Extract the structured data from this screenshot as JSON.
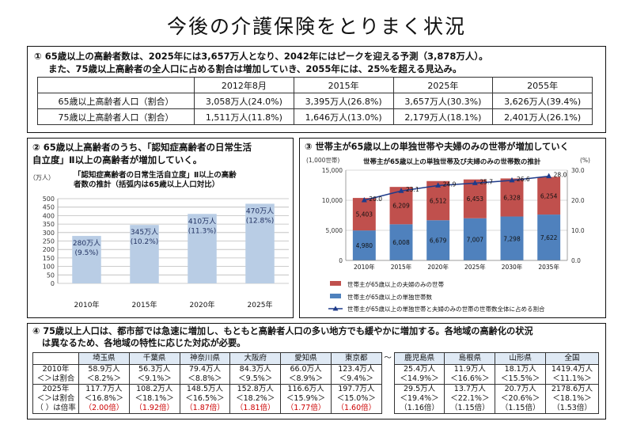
{
  "title": "今後の介護保険をとりまく状況",
  "sec1": {
    "line1": "① 65歳以上の高齢者数は、2025年には3,657万人となり、2042年にはピークを迎える予測（3,878万人）。",
    "line2": "また、75歳以上高齢者の全人口に占める割合は増加していき、2055年には、25%を超える見込み。",
    "headers": [
      "2012年8月",
      "2015年",
      "2025年",
      "2055年"
    ],
    "rows": [
      {
        "label": "65歳以上高齢者人口（割合）",
        "cells": [
          "3,058万人(24.0%)",
          "3,395万人(26.8%)",
          "3,657万人(30.3%)",
          "3,626万人(39.4%)"
        ]
      },
      {
        "label": "75歳以上高齢者人口（割合）",
        "cells": [
          "1,511万人(11.8%)",
          "1,646万人(13.0%)",
          "2,179万人(18.1%)",
          "2,401万人(26.1%)"
        ]
      }
    ]
  },
  "sec2": {
    "lead_line1": "② 65歳以上高齢者のうち、「認知症高齢者の日常生活",
    "lead_line2": "自立度」Ⅱ以上の高齢者が増加していく。",
    "chart_title_line1": "「認知症高齢者の日常生活自立度」Ⅱ以上の高齢",
    "chart_title_line2": "者数の推計（括弧内は65歳以上人口対比）",
    "bar_labels": [
      {
        "value": "280万人",
        "pct": "(9.5%)"
      },
      {
        "value": "345万人",
        "pct": "(10.2%)"
      },
      {
        "value": "410万人",
        "pct": "(11.3%)"
      },
      {
        "value": "470万人",
        "pct": "(12.8%)"
      }
    ]
  },
  "sec3": {
    "lead": "③ 世帯主が65歳以上の単独世帯や夫婦のみの世帯が増加していく",
    "chart_title": "世帯主が65歳以上の単独世帯及び夫婦のみの世帯数の推計",
    "unit_left": "(1,000世帯)",
    "unit_right": "(%)",
    "legend": [
      "世帯主が65歳以上の夫婦のみの世帯",
      "世帯主が65歳以上の単独世帯数",
      "世帯主が65歳以上の単独世帯と夫婦のみの世帯の世帯数全体に占める割合"
    ],
    "colors": {
      "couple": "#c0504d",
      "single": "#4f81bd",
      "line": "#1f3b8a"
    }
  },
  "sec4": {
    "lead_line1": "④ 75歳以上人口は、都市部では急速に増加し、もともと高齢者人口の多い地方でも緩やかに増加する。各地域の高齢化の状況",
    "lead_line2": "は異なるため、各地域の特性に応じた対応が必要。",
    "prefs": [
      "埼玉県",
      "千葉県",
      "神奈川県",
      "大阪府",
      "愛知県",
      "東京都",
      "〜",
      "鹿児島県",
      "島根県",
      "山形県",
      "全国"
    ],
    "row2010_label_1": "2010年",
    "row2010_label_2": "＜＞は割合",
    "row2010": [
      [
        "58.9万人",
        "＜8.2%＞"
      ],
      [
        "56.3万人",
        "＜9.1%＞"
      ],
      [
        "79.4万人",
        "＜8.8%＞"
      ],
      [
        "84.3万人",
        "＜9.5%＞"
      ],
      [
        "66.0万人",
        "＜8.9%＞"
      ],
      [
        "123.4万人",
        "＜9.4%＞"
      ],
      [
        "",
        ""
      ],
      [
        "25.4万人",
        "＜14.9%＞"
      ],
      [
        "11.9万人",
        "＜16.6%＞"
      ],
      [
        "18.1万人",
        "＜15.5%＞"
      ],
      [
        "1419.4万人",
        "＜11.1%＞"
      ]
    ],
    "row2025_label_1": "2025年",
    "row2025_label_2": "＜＞は割合",
    "row2025_label_3": "（ ）は倍率",
    "row2025": [
      [
        "117.7万人",
        "＜16.8%＞",
        "（2.00倍）"
      ],
      [
        "108.2万人",
        "＜18.1%＞",
        "（1.92倍）"
      ],
      [
        "148.5万人",
        "＜16.5%＞",
        "（1.87倍）"
      ],
      [
        "152.8万人",
        "＜18.2%＞",
        "（1.81倍）"
      ],
      [
        "116.6万人",
        "＜15.9%＞",
        "（1.77倍）"
      ],
      [
        "197.7万人",
        "＜15.0%＞",
        "（1.60倍）"
      ],
      [
        "",
        "",
        ""
      ],
      [
        "29.5万人",
        "＜19.4%＞",
        "（1.16倍）"
      ],
      [
        "13.7万人",
        "＜22.1%＞",
        "（1.15倍）"
      ],
      [
        "20.7万人",
        "＜20.6%＞",
        "（1.15倍）"
      ],
      [
        "2178.6万人",
        "＜18.1%＞",
        "（1.53倍）"
      ]
    ],
    "red_count": 6
  },
  "chart_data": [
    {
      "type": "bar",
      "title": "「認知症高齢者の日常生活自立度」Ⅱ以上の高齢者数の推計（括弧内は65歳以上人口対比）",
      "ylabel": "（万人）",
      "categories": [
        "2010年",
        "2015年",
        "2020年",
        "2025年"
      ],
      "values": [
        280,
        345,
        410,
        470
      ],
      "ylim": [
        0,
        500
      ],
      "yticks": [
        0,
        50,
        100,
        150,
        200,
        250,
        300,
        350,
        400,
        450,
        500
      ],
      "grid": true,
      "color": "#b9cde5"
    },
    {
      "type": "bar",
      "stacked": true,
      "title": "世帯主が65歳以上の単独世帯及び夫婦のみの世帯数の推計",
      "ylabel": "(1,000世帯)",
      "y2label": "(%)",
      "categories": [
        "2010年",
        "2015年",
        "2020年",
        "2025年",
        "2030年",
        "2035年"
      ],
      "series": [
        {
          "name": "世帯主が65歳以上の単独世帯数",
          "values": [
            4980,
            6008,
            6679,
            7007,
            7298,
            7622
          ]
        },
        {
          "name": "世帯主が65歳以上の夫婦のみの世帯",
          "values": [
            5403,
            6209,
            6512,
            6453,
            6328,
            6254
          ]
        }
      ],
      "line_series": {
        "name": "世帯主が65歳以上の単独世帯と夫婦のみの世帯の世帯数全体に占める割合",
        "values": [
          20.0,
          23.1,
          24.9,
          25.7,
          26.6,
          28.0
        ]
      },
      "ylim": [
        0,
        15000
      ],
      "yticks": [
        0,
        5000,
        10000,
        15000
      ],
      "y2lim": [
        0,
        30
      ],
      "y2ticks": [
        0.0,
        10.0,
        20.0,
        30.0
      ],
      "legend": "bottom"
    }
  ]
}
